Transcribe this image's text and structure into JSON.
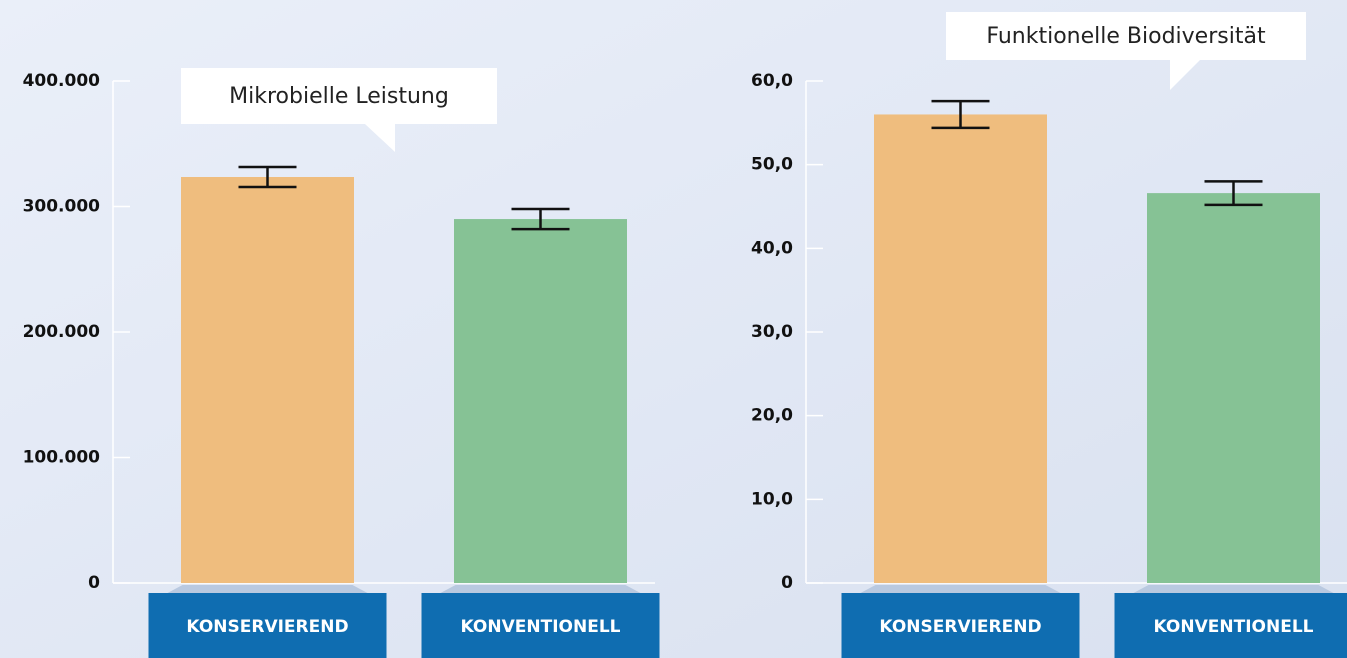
{
  "chart_data": [
    {
      "type": "bar",
      "annotation": "Mikrobielle Leistung",
      "categories": [
        "KONSERVIEREND",
        "KONVENTIONELL"
      ],
      "values": [
        323500,
        290000
      ],
      "errors": [
        8000,
        8000
      ],
      "colors": [
        "#efbd7e",
        "#86c295"
      ],
      "ylim": [
        0,
        400000
      ],
      "yticks": [
        0,
        {
          "value": 100000,
          "label": "100.000"
        },
        {
          "value": 200000,
          "label": "200.000"
        },
        {
          "value": 300000,
          "label": "300.000"
        },
        {
          "value": 400000,
          "label": "400.000"
        }
      ]
    },
    {
      "type": "bar",
      "annotation": "Funktionelle Biodiversität",
      "categories": [
        "KONSERVIEREND",
        "KONVENTIONELL"
      ],
      "values": [
        56.0,
        46.6
      ],
      "errors": [
        1.6,
        1.4
      ],
      "colors": [
        "#efbd7e",
        "#86c295"
      ],
      "ylim": [
        0,
        60
      ],
      "yticks": [
        0,
        {
          "value": 10,
          "label": "10,0"
        },
        {
          "value": 20,
          "label": "20,0"
        },
        {
          "value": 30,
          "label": "30,0"
        },
        {
          "value": 40,
          "label": "40,0"
        },
        {
          "value": 50,
          "label": "50,0"
        },
        {
          "value": 60,
          "label": "60,0"
        }
      ]
    }
  ]
}
